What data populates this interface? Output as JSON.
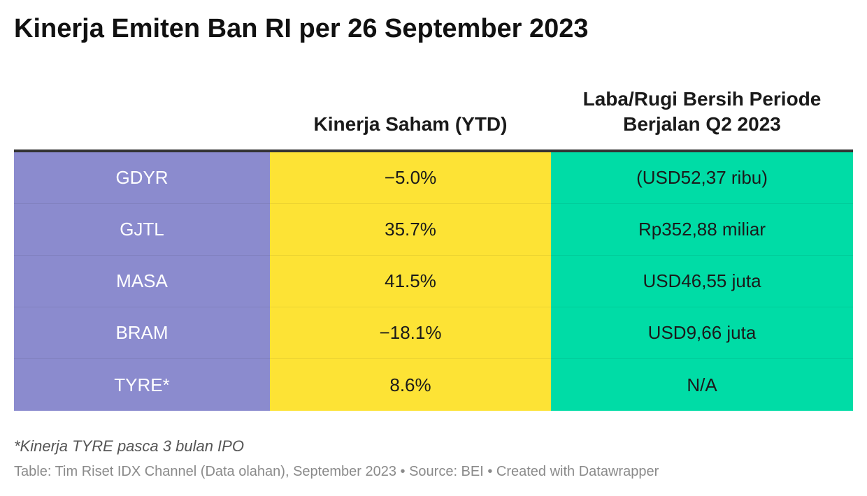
{
  "title": "Kinerja Emiten Ban RI per 26 September 2023",
  "colors": {
    "col1_bg": "#8b8bce",
    "col2_bg": "#fde335",
    "col3_bg": "#00dca6",
    "header_rule": "#333333"
  },
  "chart_data": {
    "type": "table",
    "title": "Kinerja Emiten Ban RI per 26 September 2023",
    "columns": [
      "",
      "Kinerja Saham (YTD)",
      "Laba/Rugi Bersih Periode Berjalan Q2 2023"
    ],
    "column_header_lines": [
      [
        ""
      ],
      [
        "Kinerja Saham (YTD)"
      ],
      [
        "Laba/Rugi Bersih Periode",
        "Berjalan Q2 2023"
      ]
    ],
    "rows": [
      [
        "GDYR",
        "−5.0%",
        "(USD52,37 ribu)"
      ],
      [
        "GJTL",
        "35.7%",
        "Rp352,88 miliar"
      ],
      [
        "MASA",
        "41.5%",
        "USD46,55 juta"
      ],
      [
        "BRAM",
        "−18.1%",
        "USD9,66 juta"
      ],
      [
        "TYRE*",
        "8.6%",
        "N/A"
      ]
    ]
  },
  "footnote": "*Kinerja TYRE pasca 3 bulan IPO",
  "source": "Table: Tim Riset IDX Channel (Data olahan), September 2023 • Source: BEI • Created with Datawrapper"
}
